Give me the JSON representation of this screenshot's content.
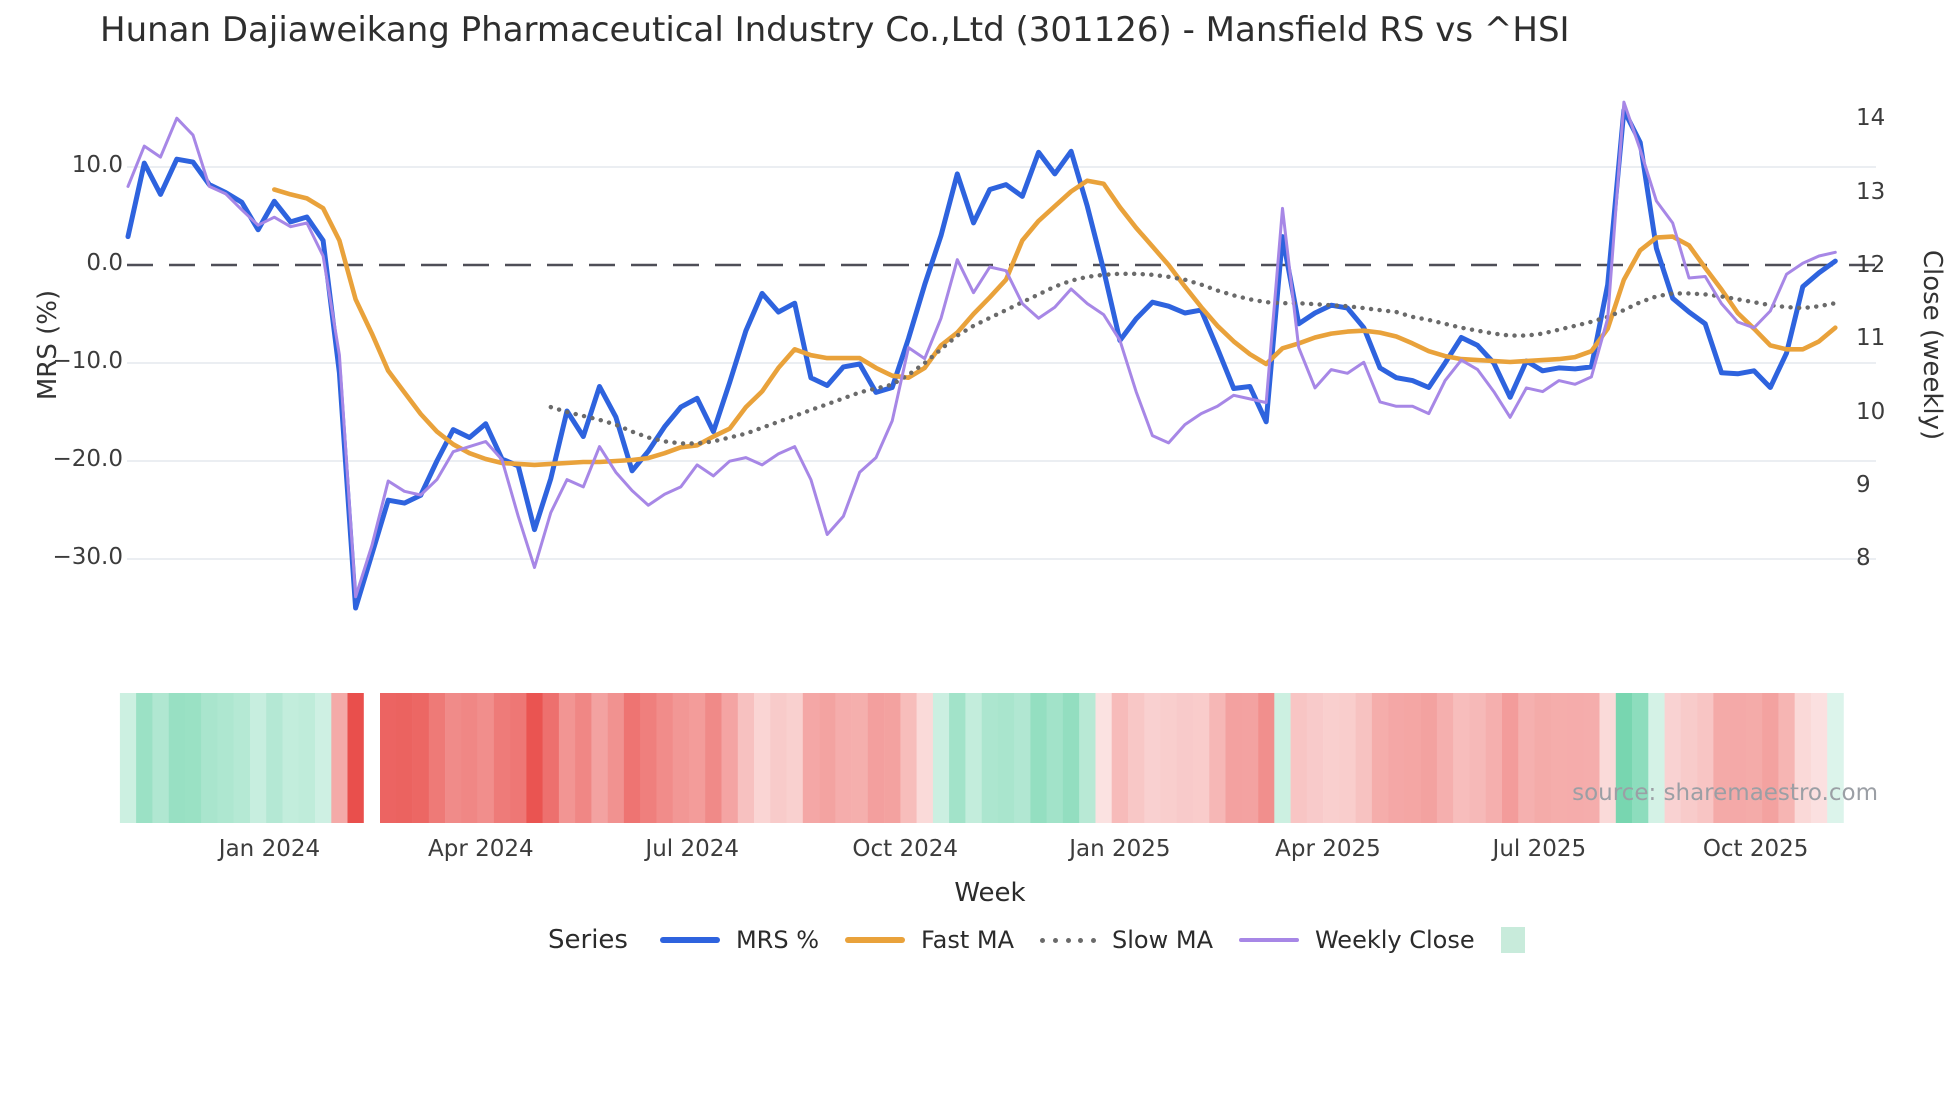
{
  "title": "Hunan Dajiaweikang Pharmaceutical Industry Co.,Ltd (301126) - Mansfield RS vs ^HSI",
  "source": "source: sharemaestro.com",
  "axes": {
    "left_label": "MRS (%)",
    "right_label": "Close (weekly)",
    "x_label": "Week",
    "left_ticks": [
      {
        "label": "10.0",
        "value": 10
      },
      {
        "label": "0.0",
        "value": 0
      },
      {
        "label": "−10.0",
        "value": -10
      },
      {
        "label": "−20.0",
        "value": -20
      },
      {
        "label": "−30.0",
        "value": -30
      }
    ],
    "right_ticks": [
      {
        "label": "14",
        "value": 14
      },
      {
        "label": "13",
        "value": 13
      },
      {
        "label": "12",
        "value": 12
      },
      {
        "label": "11",
        "value": 11
      },
      {
        "label": "10",
        "value": 10
      },
      {
        "label": "9",
        "value": 9
      },
      {
        "label": "8",
        "value": 8
      }
    ],
    "x_ticks": [
      {
        "label": "Jan 2024",
        "week": 8.7
      },
      {
        "label": "Apr 2024",
        "week": 21.7
      },
      {
        "label": "Jul 2024",
        "week": 34.7
      },
      {
        "label": "Oct 2024",
        "week": 47.8
      },
      {
        "label": "Jan 2025",
        "week": 61.0
      },
      {
        "label": "Apr 2025",
        "week": 73.8
      },
      {
        "label": "Jul 2025",
        "week": 86.8
      },
      {
        "label": "Oct 2025",
        "week": 100.1
      }
    ]
  },
  "legend": {
    "series_title": "Series",
    "items": [
      {
        "label": "MRS %",
        "color": "#2e63de",
        "style": "solid"
      },
      {
        "label": "Fast MA",
        "color": "#e9a23b",
        "style": "solid"
      },
      {
        "label": "Slow MA",
        "color": "#6a6a6a",
        "style": "dotted"
      },
      {
        "label": "Weekly Close",
        "color": "#a787e6",
        "style": "thin"
      }
    ],
    "heatmap_swatch_color": "#c8ebdb"
  },
  "chart_data": {
    "type": "line",
    "x_unit": "week_index",
    "x_count": 106,
    "grid": "horizontal",
    "zero_line": true,
    "ylim_left": [
      -38.3,
      19.4
    ],
    "ylim_right": [
      6.9,
      14.6
    ],
    "colors": {
      "mrs": "#2e63de",
      "fast_ma": "#e9a23b",
      "slow_ma": "#6a6a6a",
      "weekly_close": "#a787e6",
      "zero_line": "#4e4e57",
      "gridline": "#e8ebf1",
      "heat_positive": "#28be82",
      "heat_negative": "#e94f4c"
    },
    "series": [
      {
        "name": "MRS %",
        "axis": "left",
        "values": [
          2.9,
          10.4,
          7.2,
          10.8,
          10.5,
          8.2,
          7.4,
          6.4,
          3.6,
          6.5,
          4.4,
          4.9,
          2.5,
          -11,
          -35,
          -29.5,
          -24,
          -24.3,
          -23.5,
          -20,
          -16.8,
          -17.6,
          -16.2,
          -19.8,
          -20.5,
          -27,
          -21.8,
          -14.9,
          -17.5,
          -12.4,
          -15.5,
          -21,
          -19,
          -16.5,
          -14.5,
          -13.6,
          -17,
          -12,
          -6.7,
          -2.9,
          -4.8,
          -3.9,
          -11.5,
          -12.3,
          -10.4,
          -10.1,
          -13,
          -12.5,
          -7.5,
          -2,
          3,
          9.3,
          4.3,
          7.7,
          8.2,
          7,
          11.5,
          9.3,
          11.6,
          6,
          -0.5,
          -7.7,
          -5.5,
          -3.8,
          -4.2,
          -4.9,
          -4.6,
          -8.5,
          -12.6,
          -12.4,
          -16,
          2.9,
          -6,
          -4.9,
          -4.1,
          -4.4,
          -6.4,
          -10.5,
          -11.5,
          -11.8,
          -12.5,
          -10,
          -7.4,
          -8.2,
          -10,
          -13.5,
          -9.8,
          -10.8,
          -10.5,
          -10.6,
          -10.4,
          -2,
          15.8,
          12.5,
          1.7,
          -3.4,
          -4.8,
          -6,
          -11,
          -11.1,
          -10.8,
          -12.5,
          -9,
          -2.2,
          -0.8,
          0.4
        ]
      },
      {
        "name": "Fast MA",
        "axis": "left",
        "values": [
          null,
          null,
          null,
          null,
          null,
          null,
          null,
          null,
          null,
          7.7,
          7.2,
          6.8,
          5.8,
          2.5,
          -3.5,
          -7.0,
          -10.8,
          -13,
          -15.2,
          -17,
          -18.3,
          -19.2,
          -19.8,
          -20.2,
          -20.3,
          -20.4,
          -20.3,
          -20.2,
          -20.1,
          -20.1,
          -20.0,
          -19.9,
          -19.7,
          -19.2,
          -18.6,
          -18.4,
          -17.5,
          -16.7,
          -14.5,
          -12.9,
          -10.5,
          -8.6,
          -9.2,
          -9.5,
          -9.5,
          -9.5,
          -10.5,
          -11.3,
          -11.5,
          -10.5,
          -8.2,
          -6.9,
          -5,
          -3.3,
          -1.5,
          2.5,
          4.5,
          6,
          7.5,
          8.6,
          8.3,
          5.9,
          3.8,
          1.9,
          0,
          -2.2,
          -4.3,
          -6.2,
          -7.8,
          -9.1,
          -10.1,
          -8.5,
          -8,
          -7.4,
          -7,
          -6.8,
          -6.7,
          -6.9,
          -7.3,
          -8,
          -8.8,
          -9.3,
          -9.6,
          -9.7,
          -9.8,
          -9.9,
          -9.8,
          -9.7,
          -9.6,
          -9.4,
          -8.8,
          -6.5,
          -1.5,
          1.5,
          2.8,
          2.9,
          2,
          -0.3,
          -2.5,
          -4.9,
          -6.5,
          -8.2,
          -8.6,
          -8.6,
          -7.8,
          -6.4
        ]
      },
      {
        "name": "Slow MA",
        "axis": "left",
        "values": [
          null,
          null,
          null,
          null,
          null,
          null,
          null,
          null,
          null,
          null,
          null,
          null,
          null,
          null,
          null,
          null,
          null,
          null,
          null,
          null,
          null,
          null,
          null,
          null,
          null,
          null,
          -14.5,
          -15.0,
          -15.4,
          -15.8,
          -16.3,
          -17.0,
          -17.6,
          -18.0,
          -18.2,
          -18.2,
          -18.0,
          -17.6,
          -17.2,
          -16.6,
          -16.0,
          -15.4,
          -14.8,
          -14.2,
          -13.6,
          -13.0,
          -12.6,
          -12.2,
          -11.2,
          -10.0,
          -8.6,
          -7.2,
          -6.2,
          -5.4,
          -4.6,
          -3.8,
          -3.0,
          -2.2,
          -1.6,
          -1.2,
          -1.0,
          -0.9,
          -0.9,
          -1.0,
          -1.2,
          -1.5,
          -2.0,
          -2.6,
          -3.1,
          -3.5,
          -3.8,
          -3.9,
          -3.9,
          -4.0,
          -4.1,
          -4.2,
          -4.4,
          -4.6,
          -4.8,
          -5.3,
          -5.6,
          -6.0,
          -6.4,
          -6.7,
          -7.0,
          -7.2,
          -7.2,
          -7.0,
          -6.6,
          -6.2,
          -5.8,
          -5.3,
          -4.6,
          -3.8,
          -3.2,
          -2.9,
          -2.9,
          -3.0,
          -3.2,
          -3.5,
          -3.8,
          -4.1,
          -4.3,
          -4.4,
          -4.2,
          -3.9
        ]
      },
      {
        "name": "Weekly Close",
        "axis": "right",
        "values": [
          13.1,
          13.65,
          13.5,
          14.03,
          13.8,
          13.1,
          13.0,
          12.78,
          12.57,
          12.68,
          12.55,
          12.6,
          12.15,
          10.8,
          7.5,
          8.2,
          9.08,
          8.94,
          8.89,
          9.1,
          9.48,
          9.55,
          9.62,
          9.37,
          8.6,
          7.9,
          8.65,
          9.1,
          9.0,
          9.55,
          9.2,
          8.95,
          8.75,
          8.9,
          9.0,
          9.3,
          9.15,
          9.35,
          9.4,
          9.3,
          9.45,
          9.55,
          9.1,
          8.35,
          8.6,
          9.2,
          9.4,
          9.9,
          10.9,
          10.75,
          11.3,
          12.1,
          11.65,
          12.0,
          11.95,
          11.5,
          11.3,
          11.45,
          11.7,
          11.5,
          11.35,
          11.0,
          10.3,
          9.7,
          9.6,
          9.85,
          10.0,
          10.1,
          10.25,
          10.2,
          10.15,
          12.8,
          10.9,
          10.35,
          10.6,
          10.55,
          10.7,
          10.16,
          10.1,
          10.1,
          10.0,
          10.45,
          10.73,
          10.6,
          10.3,
          9.95,
          10.35,
          10.3,
          10.45,
          10.4,
          10.5,
          11.3,
          14.25,
          13.6,
          12.9,
          12.6,
          11.85,
          11.87,
          11.5,
          11.25,
          11.17,
          11.4,
          11.9,
          12.05,
          12.15,
          12.2
        ]
      }
    ],
    "heatmap": {
      "basis": "MRS %",
      "gap_weeks": [
        15
      ],
      "description": "weekly bar strip colored green for positive MRS, red for negative, intensity by magnitude"
    }
  }
}
